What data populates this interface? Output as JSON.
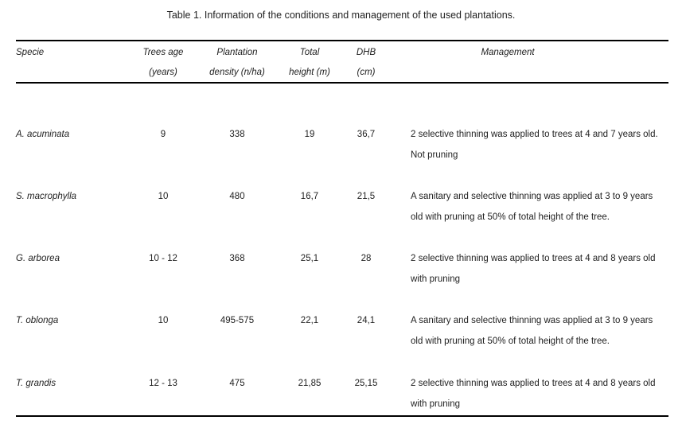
{
  "caption": "Table 1. Information of the conditions and management of the used plantations.",
  "headers": {
    "specie": [
      "Specie",
      ""
    ],
    "age": [
      "Trees age",
      "(years)"
    ],
    "density": [
      "Plantation",
      "density (n/ha)"
    ],
    "height": [
      "Total",
      "height (m)"
    ],
    "dhb": [
      "DHB",
      "(cm)"
    ],
    "management": [
      "Management",
      ""
    ]
  },
  "rows": [
    {
      "specie": "A. acuminata",
      "age": "9",
      "density": "338",
      "height": "19",
      "dhb": "36,7",
      "management": [
        "2 selective thinning was applied to trees at 4 and 7 years old.",
        "Not pruning"
      ]
    },
    {
      "specie": "S. macrophylla",
      "age": "10",
      "density": "480",
      "height": "16,7",
      "dhb": "21,5",
      "management": [
        "A sanitary and selective thinning was applied at 3 to 9 years",
        "old with pruning at 50% of total height of the tree."
      ]
    },
    {
      "specie": "G. arborea",
      "age": "10 - 12",
      "density": "368",
      "height": "25,1",
      "dhb": "28",
      "management": [
        "2 selective thinning was applied to trees at 4 and 8 years old",
        "with pruning"
      ]
    },
    {
      "specie": "T. oblonga",
      "age": "10",
      "density": "495-575",
      "height": "22,1",
      "dhb": "24,1",
      "management": [
        "A sanitary and selective thinning was applied at 3 to 9 years",
        "old with pruning at 50% of total height of the tree."
      ]
    },
    {
      "specie": "T. grandis",
      "age": "12 - 13",
      "density": "475",
      "height": "21,85",
      "dhb": "25,15",
      "management": [
        "2 selective thinning was applied to trees at 4 and 8 years old",
        "with pruning"
      ]
    }
  ]
}
